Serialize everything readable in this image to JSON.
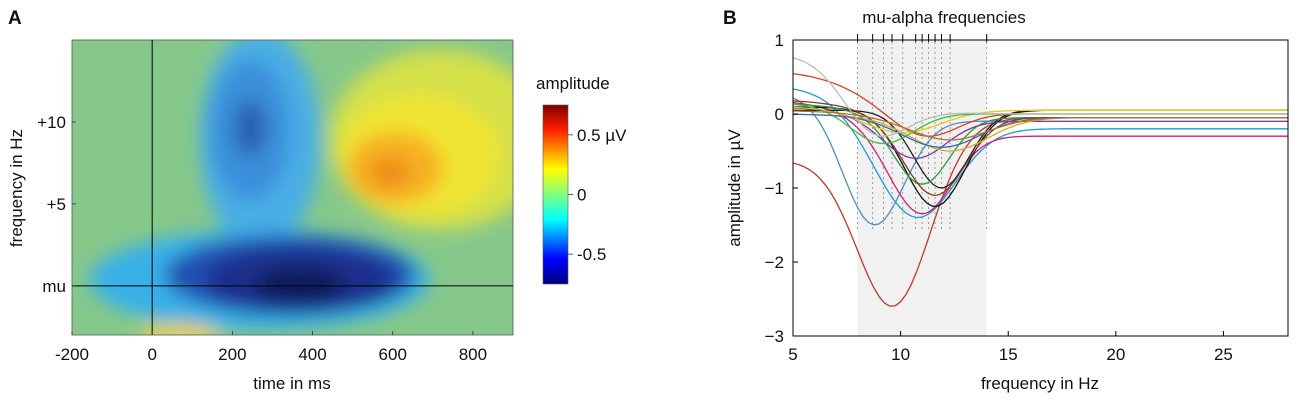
{
  "panels": {
    "a": "A",
    "b": "B"
  },
  "chart_data": [
    {
      "type": "heatmap",
      "panel": "A",
      "xlabel": "time in ms",
      "ylabel": "frequency in Hz",
      "xlim": [
        -200,
        900
      ],
      "x_ticks": [
        {
          "value": -200,
          "label": "-200"
        },
        {
          "value": 0,
          "label": "0"
        },
        {
          "value": 200,
          "label": "200"
        },
        {
          "value": 400,
          "label": "400"
        },
        {
          "value": 600,
          "label": "600"
        },
        {
          "value": 800,
          "label": "800"
        }
      ],
      "ylim": [
        -3,
        15
      ],
      "y_ticks": [
        {
          "value": 0,
          "label": "mu"
        },
        {
          "value": 5,
          "label": "+5"
        },
        {
          "value": 10,
          "label": "+10"
        }
      ],
      "reference_lines": {
        "time_ms": 0,
        "frequency": 0
      },
      "colorbar": {
        "title": "amplitude",
        "range": [
          -0.75,
          0.75
        ],
        "ticks": [
          {
            "value": 0.5,
            "label": "0.5 µV"
          },
          {
            "value": 0,
            "label": "0"
          },
          {
            "value": -0.5,
            "label": "-0.5"
          }
        ],
        "colormap": [
          "#00007f",
          "#0000ff",
          "#00ffff",
          "#7fff7f",
          "#ffff00",
          "#ff7f00",
          "#ff0000",
          "#7f0000"
        ]
      },
      "features": [
        {
          "time_ms": 350,
          "freq": 0,
          "amplitude": -0.75
        },
        {
          "time_ms": 250,
          "freq": 10,
          "amplitude": -0.5
        },
        {
          "time_ms": 600,
          "freq": 7,
          "amplitude": 0.35
        },
        {
          "time_ms": 80,
          "freq": -3,
          "amplitude": 0.15
        }
      ]
    },
    {
      "type": "line",
      "panel": "B",
      "title": "mu-alpha frequencies",
      "xlabel": "frequency in Hz",
      "ylabel": "amplitude in µV",
      "xlim": [
        5,
        28
      ],
      "ylim": [
        -3,
        1
      ],
      "x_ticks": [
        {
          "value": 5,
          "label": "5"
        },
        {
          "value": 10,
          "label": "10"
        },
        {
          "value": 15,
          "label": "15"
        },
        {
          "value": 20,
          "label": "20"
        },
        {
          "value": 25,
          "label": "25"
        }
      ],
      "y_ticks": [
        {
          "value": 1,
          "label": "1"
        },
        {
          "value": 0,
          "label": "0"
        },
        {
          "value": -1,
          "label": "−1"
        },
        {
          "value": -2,
          "label": "−2"
        },
        {
          "value": -3,
          "label": "−3"
        }
      ],
      "shaded_band": [
        8,
        14
      ],
      "mu_alpha_frequencies": [
        8,
        8.7,
        9.2,
        9.6,
        10.1,
        10.7,
        11,
        11.3,
        11.6,
        11.9,
        12.3,
        14
      ],
      "series": [
        {
          "name": "s1",
          "color": "#c0392b",
          "start": -0.65,
          "min_x": 9.6,
          "min_y": -2.6,
          "width": 2.5,
          "end": -0.05
        },
        {
          "name": "s2",
          "color": "#4a90c8",
          "start": 0.3,
          "min_x": 8.8,
          "min_y": -1.5,
          "width": 2.0,
          "end": -0.1
        },
        {
          "name": "s3",
          "color": "#1a9cd6",
          "start": 0.4,
          "min_x": 10.8,
          "min_y": -1.4,
          "width": 2.5,
          "end": -0.2
        },
        {
          "name": "s4",
          "color": "#d81b78",
          "start": 0.2,
          "min_x": 11.0,
          "min_y": -1.35,
          "width": 2.0,
          "end": -0.3
        },
        {
          "name": "s5",
          "color": "#111111",
          "start": 0.1,
          "min_x": 11.6,
          "min_y": -1.25,
          "width": 2.0,
          "end": 0.05
        },
        {
          "name": "s6",
          "color": "#222222",
          "start": 0.05,
          "min_x": 11.9,
          "min_y": -1.0,
          "width": 1.8,
          "end": 0.05
        },
        {
          "name": "s7",
          "color": "#2e9b3e",
          "start": 0.15,
          "min_x": 11.0,
          "min_y": -0.95,
          "width": 1.8,
          "end": -0.05
        },
        {
          "name": "s8",
          "color": "#8b3a2b",
          "start": 0.2,
          "min_x": 11.6,
          "min_y": -1.1,
          "width": 2.0,
          "end": -0.05
        },
        {
          "name": "s9",
          "color": "#7a3ea0",
          "start": 0.1,
          "min_x": 10.7,
          "min_y": -0.6,
          "width": 2.0,
          "end": -0.1
        },
        {
          "name": "s10",
          "color": "#e2401c",
          "start": 0.6,
          "min_x": 11.3,
          "min_y": -0.3,
          "width": 2.0,
          "end": 0.0
        },
        {
          "name": "s11",
          "color": "#e8c81a",
          "start": 0.1,
          "min_x": 10.1,
          "min_y": -0.25,
          "width": 2.5,
          "end": 0.05
        },
        {
          "name": "s12",
          "color": "#f0a020",
          "start": 0.0,
          "min_x": 12.3,
          "min_y": -0.5,
          "width": 2.5,
          "end": -0.05
        },
        {
          "name": "s13",
          "color": "#3fbf3f",
          "start": 0.15,
          "min_x": 9.2,
          "min_y": -0.4,
          "width": 2.0,
          "end": 0.0
        },
        {
          "name": "s14",
          "color": "#1f77b4",
          "start": 0.0,
          "min_x": 11.9,
          "min_y": -0.45,
          "width": 2.5,
          "end": -0.05
        },
        {
          "name": "s15",
          "color": "#bbbbbb",
          "start": 0.85,
          "min_x": 9.2,
          "min_y": -0.3,
          "width": 2.0,
          "end": 0.0
        },
        {
          "name": "s16",
          "color": "#aa7733",
          "start": 0.05,
          "min_x": 12.3,
          "min_y": -0.35,
          "width": 2.5,
          "end": -0.05
        }
      ]
    }
  ]
}
